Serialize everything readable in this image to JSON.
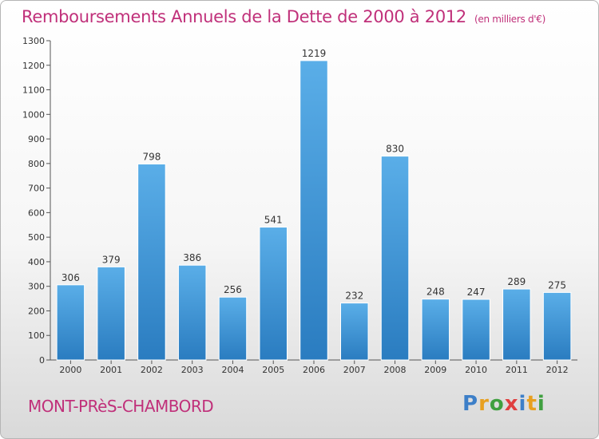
{
  "page": {
    "title": "Remboursements Annuels de la Dette de 2000 à 2012",
    "subtitle": "(en milliers d'€)",
    "commune": "MONT-PRèS-CHAMBORD",
    "logo": {
      "letters": [
        "P",
        "r",
        "o",
        "x",
        "i",
        "t",
        "i"
      ],
      "colors": [
        "#3d7fc8",
        "#e8a020",
        "#40a040",
        "#e04040",
        "#3d7fc8",
        "#e8a020",
        "#40a040"
      ]
    }
  },
  "colors": {
    "accent": "#c0307a",
    "bar_light": "#5aaee8",
    "bar_dark": "#2a7cc0"
  },
  "chart_data": {
    "type": "bar",
    "categories": [
      "2000",
      "2001",
      "2002",
      "2003",
      "2004",
      "2005",
      "2006",
      "2007",
      "2008",
      "2009",
      "2010",
      "2011",
      "2012"
    ],
    "values": [
      306,
      379,
      798,
      386,
      256,
      541,
      1219,
      232,
      830,
      248,
      247,
      289,
      275
    ],
    "title": "Remboursements Annuels de la Dette de 2000 à 2012",
    "ylim": [
      0,
      1300
    ],
    "yticks": [
      0,
      100,
      200,
      300,
      400,
      500,
      600,
      700,
      800,
      900,
      1000,
      1100,
      1200,
      1300
    ],
    "grid": false,
    "data_labels": true
  }
}
